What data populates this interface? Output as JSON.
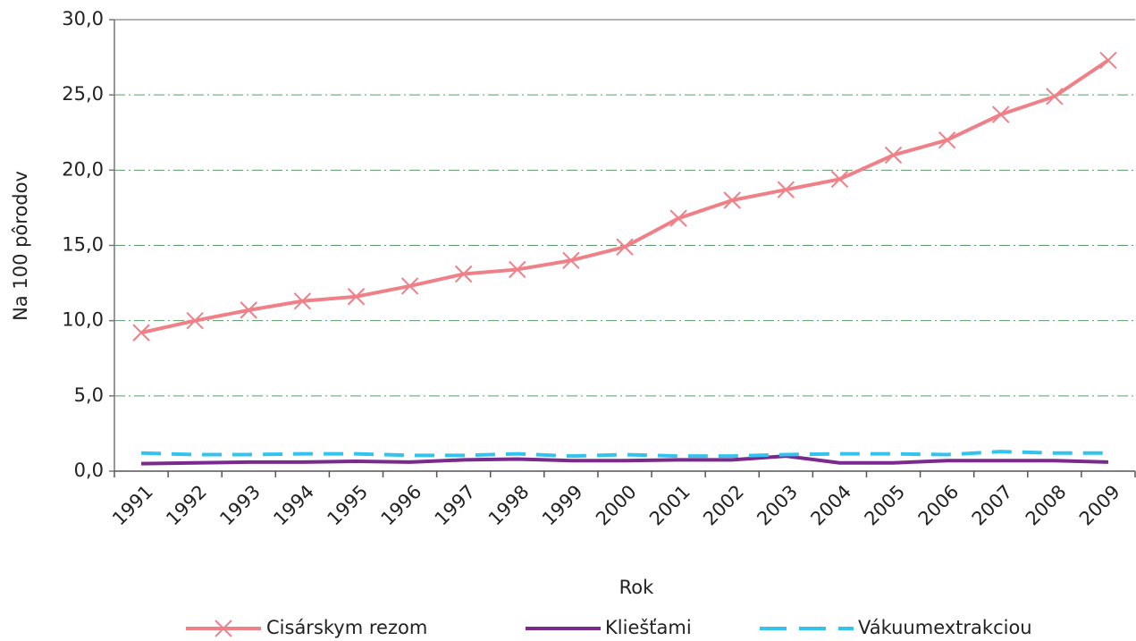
{
  "chart_data": {
    "type": "line",
    "x_label": "Rok",
    "y_label": "Na 100 pôrodov",
    "categories": [
      "1991",
      "1992",
      "1993",
      "1994",
      "1995",
      "1996",
      "1997",
      "1998",
      "1999",
      "2000",
      "2001",
      "2002",
      "2003",
      "2004",
      "2005",
      "2006",
      "2007",
      "2008",
      "2009"
    ],
    "series": [
      {
        "name": "Cisárskym rezom",
        "color": "#ef8088",
        "marker": "x",
        "values": [
          9.2,
          10.0,
          10.7,
          11.3,
          11.6,
          12.3,
          13.1,
          13.4,
          14.0,
          14.9,
          16.8,
          18.0,
          18.7,
          19.4,
          21.0,
          22.0,
          23.7,
          24.9,
          27.3
        ]
      },
      {
        "name": "Kliešťami",
        "color": "#7a2a8c",
        "values": [
          0.5,
          0.55,
          0.6,
          0.6,
          0.65,
          0.6,
          0.75,
          0.8,
          0.7,
          0.7,
          0.75,
          0.75,
          1.0,
          0.55,
          0.55,
          0.7,
          0.7,
          0.7,
          0.6
        ]
      },
      {
        "name": "Vákuumextrakciou",
        "color": "#33c3ee",
        "dash": true,
        "values": [
          1.2,
          1.1,
          1.1,
          1.15,
          1.15,
          1.05,
          1.05,
          1.15,
          1.0,
          1.1,
          1.0,
          1.0,
          1.1,
          1.15,
          1.15,
          1.1,
          1.3,
          1.2,
          1.2
        ]
      }
    ],
    "ylim": [
      0,
      30
    ],
    "yticks": [
      {
        "value": 0,
        "label": "0,0"
      },
      {
        "value": 5,
        "label": "5,0"
      },
      {
        "value": 10,
        "label": "10,0"
      },
      {
        "value": 15,
        "label": "15,0"
      },
      {
        "value": 20,
        "label": "20,0"
      },
      {
        "value": 25,
        "label": "25,0"
      },
      {
        "value": 30,
        "label": "30,0"
      }
    ],
    "grid": true,
    "legend": "bottom"
  }
}
